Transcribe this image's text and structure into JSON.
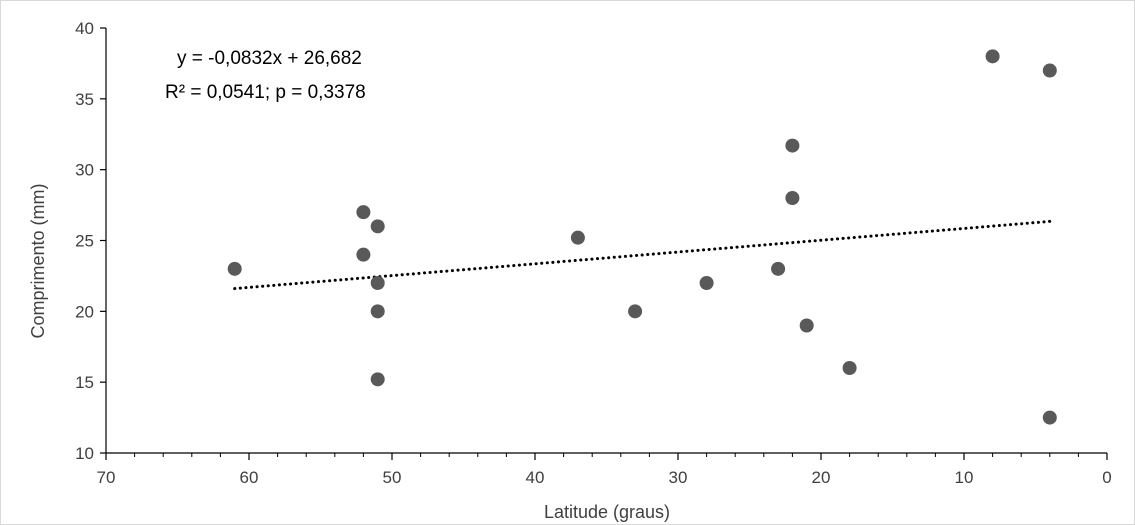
{
  "chart_data": {
    "type": "scatter",
    "title": "",
    "xlabel": "Latitude (graus)",
    "ylabel": "Comprimento (mm)",
    "xlim": [
      70,
      0
    ],
    "ylim": [
      10,
      40
    ],
    "x_reversed": true,
    "xticks": [
      70,
      60,
      50,
      40,
      30,
      20,
      10,
      0
    ],
    "yticks": [
      10,
      15,
      20,
      25,
      30,
      35,
      40
    ],
    "grid": false,
    "legend": "none",
    "series": [
      {
        "points": [
          {
            "x": 61,
            "y": 23
          },
          {
            "x": 52,
            "y": 27
          },
          {
            "x": 52,
            "y": 24
          },
          {
            "x": 51,
            "y": 26
          },
          {
            "x": 51,
            "y": 22
          },
          {
            "x": 51,
            "y": 20
          },
          {
            "x": 51,
            "y": 15.2
          },
          {
            "x": 37,
            "y": 25.2
          },
          {
            "x": 33,
            "y": 20
          },
          {
            "x": 28,
            "y": 22
          },
          {
            "x": 23,
            "y": 23
          },
          {
            "x": 22,
            "y": 31.7
          },
          {
            "x": 22,
            "y": 28
          },
          {
            "x": 21,
            "y": 19
          },
          {
            "x": 18,
            "y": 16
          },
          {
            "x": 8,
            "y": 38
          },
          {
            "x": 4,
            "y": 37
          },
          {
            "x": 4,
            "y": 12.5
          }
        ],
        "color": "#595959"
      }
    ],
    "trendline": {
      "type": "linear",
      "style": "dotted",
      "color": "#000000",
      "slope": -0.0832,
      "intercept": 26.682,
      "x_from": 61,
      "x_to": 4
    },
    "annotations": [
      "y = -0,0832x + 26,682",
      "R² = 0,0541; p = 0,3378"
    ],
    "colors": {
      "axis": "#000000",
      "text": "#404040",
      "marker": "#595959",
      "border": "#d9d9d9"
    }
  }
}
